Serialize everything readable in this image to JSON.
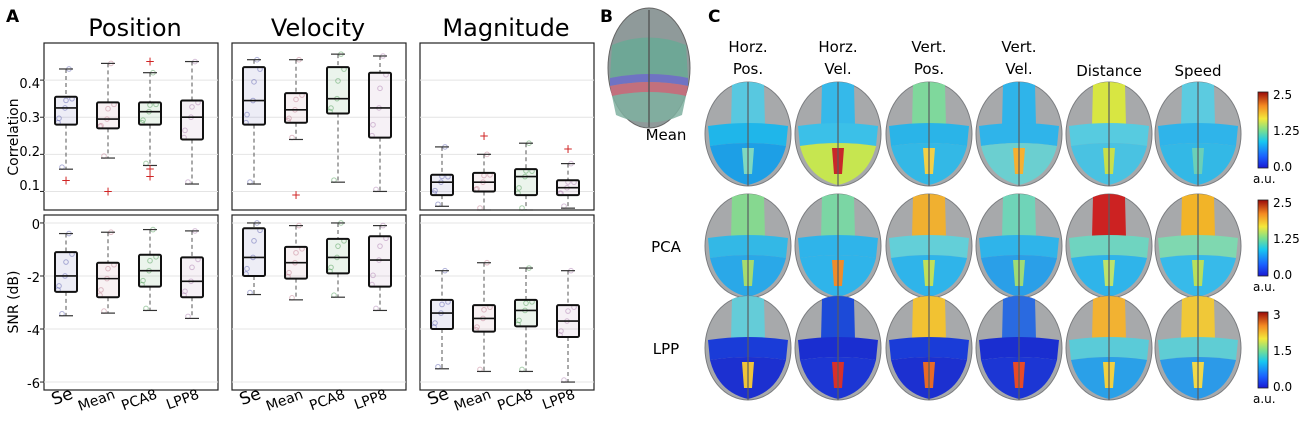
{
  "panel_labels": [
    "A",
    "B",
    "C"
  ],
  "chart_data": [
    {
      "type": "box",
      "title": "Position",
      "ylabel": "Correlation",
      "ylim": [
        0.05,
        0.5
      ],
      "yticks": [
        "0.1",
        "0.2",
        "0.3",
        "0.4"
      ],
      "grid": true,
      "box_colors": [
        "#6c6fb8",
        "#c8889a",
        "#5ea866",
        "#b48ab8"
      ],
      "boxes": [
        {
          "category": "Se",
          "whislo": 0.16,
          "q1": 0.28,
          "med": 0.325,
          "q3": 0.355,
          "whishi": 0.43,
          "fliers": [
            0.13
          ]
        },
        {
          "category": "Mean",
          "whislo": 0.19,
          "q1": 0.27,
          "med": 0.295,
          "q3": 0.34,
          "whishi": 0.445,
          "fliers": [
            0.1
          ]
        },
        {
          "category": "PCA8",
          "whislo": 0.17,
          "q1": 0.28,
          "med": 0.315,
          "q3": 0.34,
          "whishi": 0.42,
          "fliers": [
            0.45,
            0.16,
            0.14
          ]
        },
        {
          "category": "LPP8",
          "whislo": 0.12,
          "q1": 0.24,
          "med": 0.3,
          "q3": 0.345,
          "whishi": 0.45,
          "fliers": []
        }
      ]
    },
    {
      "type": "box",
      "title": "Velocity",
      "ylabel": "Correlation",
      "ylim": [
        0.05,
        0.5
      ],
      "grid": true,
      "boxes": [
        {
          "category": "Se",
          "whislo": 0.12,
          "q1": 0.28,
          "med": 0.345,
          "q3": 0.435,
          "whishi": 0.455,
          "fliers": []
        },
        {
          "category": "Mean",
          "whislo": 0.24,
          "q1": 0.285,
          "med": 0.32,
          "q3": 0.365,
          "whishi": 0.455,
          "fliers": [
            0.09
          ]
        },
        {
          "category": "PCA8",
          "whislo": 0.125,
          "q1": 0.31,
          "med": 0.35,
          "q3": 0.435,
          "whishi": 0.47,
          "fliers": []
        },
        {
          "category": "LPP8",
          "whislo": 0.1,
          "q1": 0.245,
          "med": 0.325,
          "q3": 0.42,
          "whishi": 0.465,
          "fliers": []
        }
      ]
    },
    {
      "type": "box",
      "title": "Magnitude",
      "ylabel": "Correlation",
      "ylim": [
        0.05,
        0.5
      ],
      "grid": true,
      "boxes": [
        {
          "category": "Se",
          "whislo": 0.06,
          "q1": 0.09,
          "med": 0.125,
          "q3": 0.145,
          "whishi": 0.22,
          "fliers": []
        },
        {
          "category": "Mean",
          "whislo": 0.05,
          "q1": 0.1,
          "med": 0.125,
          "q3": 0.15,
          "whishi": 0.2,
          "fliers": [
            0.25
          ]
        },
        {
          "category": "PCA8",
          "whislo": 0.05,
          "q1": 0.09,
          "med": 0.14,
          "q3": 0.16,
          "whishi": 0.23,
          "fliers": []
        },
        {
          "category": "LPP8",
          "whislo": 0.055,
          "q1": 0.09,
          "med": 0.11,
          "q3": 0.13,
          "whishi": 0.175,
          "fliers": [
            0.215
          ]
        }
      ]
    },
    {
      "type": "box",
      "title": "",
      "ylabel": "SNR (dB)",
      "ylim": [
        -6.3,
        0.3
      ],
      "yticks": [
        "-6",
        "-4",
        "-2",
        "0"
      ],
      "grid": true,
      "boxes": [
        {
          "category": "Se",
          "whislo": -3.5,
          "q1": -2.6,
          "med": -2.0,
          "q3": -1.1,
          "whishi": -0.4,
          "fliers": []
        },
        {
          "category": "Mean",
          "whislo": -3.4,
          "q1": -2.8,
          "med": -2.1,
          "q3": -1.5,
          "whishi": -0.35,
          "fliers": []
        },
        {
          "category": "PCA8",
          "whislo": -3.3,
          "q1": -2.4,
          "med": -1.8,
          "q3": -1.2,
          "whishi": -0.25,
          "fliers": []
        },
        {
          "category": "LPP8",
          "whislo": -3.6,
          "q1": -2.8,
          "med": -2.2,
          "q3": -1.3,
          "whishi": -0.3,
          "fliers": []
        }
      ]
    },
    {
      "type": "box",
      "title": "",
      "ylabel": "SNR (dB)",
      "ylim": [
        -6.3,
        0.3
      ],
      "grid": true,
      "boxes": [
        {
          "category": "Se",
          "whislo": -2.7,
          "q1": -2.0,
          "med": -1.3,
          "q3": -0.2,
          "whishi": 0.0,
          "fliers": []
        },
        {
          "category": "Mean",
          "whislo": -2.9,
          "q1": -2.1,
          "med": -1.5,
          "q3": -0.9,
          "whishi": -0.1,
          "fliers": []
        },
        {
          "category": "PCA8",
          "whislo": -2.8,
          "q1": -1.9,
          "med": -1.3,
          "q3": -0.6,
          "whishi": 0.0,
          "fliers": []
        },
        {
          "category": "LPP8",
          "whislo": -3.3,
          "q1": -2.4,
          "med": -1.4,
          "q3": -0.5,
          "whishi": -0.1,
          "fliers": []
        }
      ]
    },
    {
      "type": "box",
      "title": "",
      "ylabel": "SNR (dB)",
      "ylim": [
        -6.3,
        0.3
      ],
      "grid": true,
      "boxes": [
        {
          "category": "Se",
          "whislo": -5.5,
          "q1": -4.0,
          "med": -3.4,
          "q3": -2.9,
          "whishi": -1.8,
          "fliers": []
        },
        {
          "category": "Mean",
          "whislo": -5.6,
          "q1": -4.1,
          "med": -3.6,
          "q3": -3.1,
          "whishi": -1.5,
          "fliers": []
        },
        {
          "category": "PCA8",
          "whislo": -5.6,
          "q1": -3.9,
          "med": -3.3,
          "q3": -2.9,
          "whishi": -1.7,
          "fliers": []
        },
        {
          "category": "LPP8",
          "whislo": -6.0,
          "q1": -4.3,
          "med": -3.7,
          "q3": -3.1,
          "whishi": -1.8,
          "fliers": []
        }
      ]
    }
  ],
  "x_categories": [
    "Se",
    "Mean",
    "PCA8",
    "LPP8"
  ],
  "panel_c": {
    "column_titles": [
      [
        "Horz.",
        "Pos."
      ],
      [
        "Horz.",
        "Vel."
      ],
      [
        "Vert.",
        "Pos."
      ],
      [
        "Vert.",
        "Vel."
      ],
      [
        "Distance"
      ],
      [
        "Speed"
      ]
    ],
    "row_labels": [
      "Mean",
      "PCA",
      "LPP"
    ],
    "colorbars": [
      {
        "ticks": [
          "2.5",
          "1.25",
          "0.0"
        ],
        "unit": "a.u."
      },
      {
        "ticks": [
          "2.5",
          "1.25",
          "0.0"
        ],
        "unit": "a.u."
      },
      {
        "ticks": [
          "3",
          "1.5",
          "0.0"
        ],
        "unit": "a.u."
      }
    ],
    "brain_maps": [
      [
        {
          "frontal": "#58c8e0",
          "central": "#1fb6ea",
          "posterior": "#1d9fe6",
          "spot": "#7fd9c0"
        },
        {
          "frontal": "#35b9ea",
          "central": "#3bc0e8",
          "posterior": "#c6e650",
          "spot": "#c8282a"
        },
        {
          "frontal": "#7fd89c",
          "central": "#2ab4e8",
          "posterior": "#33b8e6",
          "spot": "#f2d046"
        },
        {
          "frontal": "#2fb4ea",
          "central": "#2fb4ea",
          "posterior": "#6bcfd0",
          "spot": "#f6b030"
        },
        {
          "frontal": "#d8e642",
          "central": "#57cbe0",
          "posterior": "#49c2e2",
          "spot": "#c8e04a"
        },
        {
          "frontal": "#5ccbe0",
          "central": "#2fb4ea",
          "posterior": "#33b8e6",
          "spot": "#6ad0b8"
        }
      ],
      [
        {
          "frontal": "#86d890",
          "central": "#33b8e6",
          "posterior": "#2aa8e8",
          "spot": "#a6dc6e"
        },
        {
          "frontal": "#7bd6a4",
          "central": "#2fb4ea",
          "posterior": "#2fb4ea",
          "spot": "#f08c2a"
        },
        {
          "frontal": "#f0b030",
          "central": "#63cfd8",
          "posterior": "#2fb4ea",
          "spot": "#c0e05a"
        },
        {
          "frontal": "#6fd4b8",
          "central": "#2fb4ea",
          "posterior": "#2a9fe8",
          "spot": "#9edb76"
        },
        {
          "frontal": "#cc2222",
          "central": "#6fd4c0",
          "posterior": "#2fb4ea",
          "spot": "#bde36c"
        },
        {
          "frontal": "#f2b428",
          "central": "#7fd8b0",
          "posterior": "#37baea",
          "spot": "#b8e05c"
        }
      ],
      [
        {
          "frontal": "#64ccd8",
          "central": "#1a3cd8",
          "posterior": "#1c30d0",
          "spot": "#f0c43a"
        },
        {
          "frontal": "#1c4ad8",
          "central": "#1a2ed0",
          "posterior": "#1c36d4",
          "spot": "#d8302a"
        },
        {
          "frontal": "#f2c232",
          "central": "#1a3cd8",
          "posterior": "#1c30d0",
          "spot": "#e86a26"
        },
        {
          "frontal": "#2a6ae0",
          "central": "#1a2ed0",
          "posterior": "#1c36d4",
          "spot": "#e84a26"
        },
        {
          "frontal": "#f2b232",
          "central": "#5acbd8",
          "posterior": "#2aa0e8",
          "spot": "#f2d040"
        },
        {
          "frontal": "#f0c838",
          "central": "#5fcdd4",
          "posterior": "#2c9ae8",
          "spot": "#f2d848"
        }
      ]
    ]
  }
}
